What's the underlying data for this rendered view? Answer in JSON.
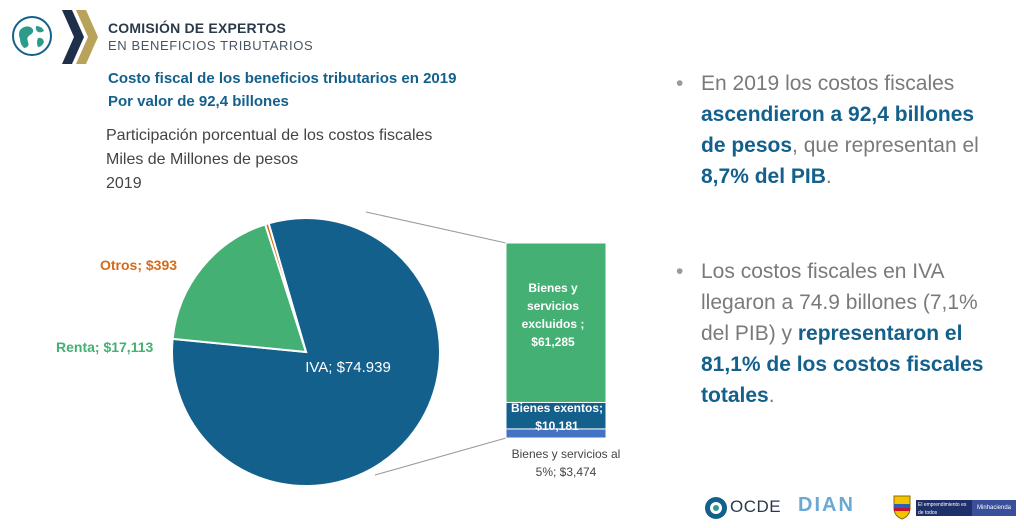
{
  "header": {
    "org_line1": "COMISIÓN DE EXPERTOS",
    "org_line2": "EN BENEFICIOS TRIBUTARIOS",
    "title_line1": "Costo fiscal de los beneficios tributarios en 2019",
    "title_line2": "Por valor de 92,4 billones"
  },
  "chart_subtitle": {
    "line1": "Participación porcentual de los costos fiscales",
    "line2": "Miles de Millones de pesos",
    "line3": "2019"
  },
  "chart_data": {
    "type": "pie",
    "slices": [
      {
        "label": "IVA; $74.939",
        "value": 74939,
        "color": "#14608c"
      },
      {
        "label": "Renta; $17,113",
        "value": 17113,
        "color": "#45b073"
      },
      {
        "label": "Otros; $393",
        "value": 393,
        "color": "#d46a1a"
      }
    ],
    "breakdown_of": "IVA",
    "breakdown": [
      {
        "label": "Bienes y servicios excluidos ; $61,285",
        "value": 61285,
        "color": "#45b073"
      },
      {
        "label": "Bienes exentos; $10,181",
        "value": 10181,
        "color": "#14608c"
      },
      {
        "label": "Bienes y servicios al 5%; $3,474",
        "value": 3474,
        "color": "#4472c4"
      }
    ]
  },
  "chart_labels": {
    "iva": "IVA; $74.939",
    "renta": "Renta; $17,113",
    "otros": "Otros; $393",
    "excluidos_1": "Bienes y",
    "excluidos_2": "servicios",
    "excluidos_3": "excluidos ;",
    "excluidos_4": "$61,285",
    "exentos_1": "Bienes exentos;",
    "exentos_2": "$10,181",
    "cinco_1": "Bienes y servicios al",
    "cinco_2": "5%; $3,474"
  },
  "bullets": {
    "b1_p1": "En 2019 los costos fiscales ",
    "b1_b1": "ascendieron a 92,4 billones de pesos",
    "b1_p2": ", que representan el ",
    "b1_b2": "8,7% del PIB",
    "b1_p3": ".",
    "b2_p1": "Los costos fiscales en IVA llegaron a 74.9 billones (7,1% del PIB) y ",
    "b2_b1": "representaron el 81,1% de los costos fiscales totales",
    "b2_p2": "."
  },
  "footer": {
    "ocde": "OCDE",
    "dian": "DIAN",
    "gov_text": "El emprendimiento es de todos",
    "gov_tag": "Minhacienda"
  },
  "colors": {
    "brand_blue": "#14608c",
    "green": "#45b073",
    "orange": "#d46a1a",
    "light_blue": "#4472c4"
  }
}
